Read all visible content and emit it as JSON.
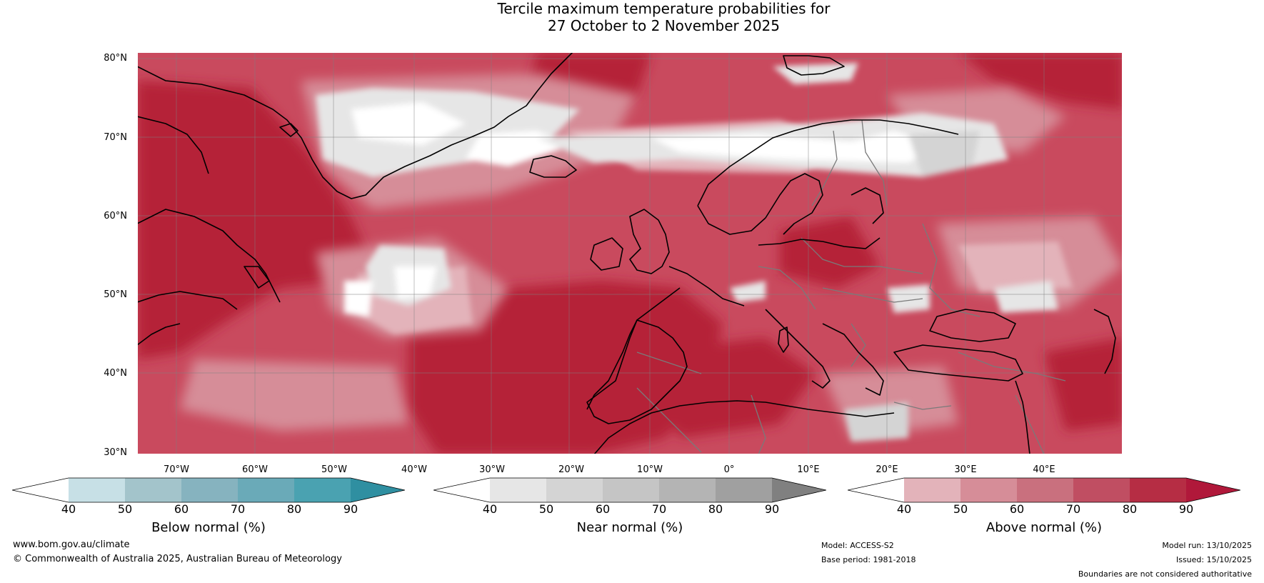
{
  "title": {
    "line1": "Tercile maximum temperature probabilities for",
    "line2": "27 October to 2 November 2025"
  },
  "map": {
    "latitude_labels": [
      "80°N",
      "70°N",
      "60°N",
      "50°N",
      "40°N",
      "30°N"
    ],
    "longitude_labels": [
      "70°W",
      "60°W",
      "50°W",
      "40°W",
      "30°W",
      "20°W",
      "10°W",
      "0°",
      "10°E",
      "20°E",
      "30°E",
      "40°E"
    ],
    "colors": {
      "ocean_base": "#c94a5e",
      "deep_red": "#b52039",
      "land_outline": "#000000",
      "border_line": "#7a7a7a",
      "gridline": "#808080"
    }
  },
  "colorbars": [
    {
      "label": "Below normal (%)",
      "ticks": [
        "40",
        "50",
        "60",
        "70",
        "80",
        "90"
      ],
      "colors": [
        "#ffffff",
        "#c7e0e6",
        "#a3c4cb",
        "#86b3bf",
        "#6aaab8",
        "#4aa2b1",
        "#2f8fa1"
      ]
    },
    {
      "label": "Near normal (%)",
      "ticks": [
        "40",
        "50",
        "60",
        "70",
        "80",
        "90"
      ],
      "colors": [
        "#ffffff",
        "#e6e6e6",
        "#d4d4d4",
        "#c5c5c5",
        "#b4b4b4",
        "#a0a0a0",
        "#808080"
      ]
    },
    {
      "label": "Above normal (%)",
      "ticks": [
        "40",
        "50",
        "60",
        "70",
        "80",
        "90"
      ],
      "colors": [
        "#ffffff",
        "#e3b3ba",
        "#d68d98",
        "#c9707e",
        "#c04e62",
        "#b62d44",
        "#b0183a"
      ]
    }
  ],
  "footer": {
    "website": "www.bom.gov.au/climate",
    "copyright": "© Commonwealth of Australia 2025, Australian Bureau of Meteorology",
    "model": "Model: ACCESS-S2",
    "base_period": "Base period: 1981-2018",
    "model_run": "Model run: 13/10/2025",
    "issued": "Issued: 15/10/2025",
    "disclaimer": "Boundaries are not considered authoritative"
  }
}
